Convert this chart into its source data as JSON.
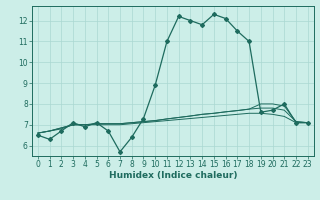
{
  "xlabel": "Humidex (Indice chaleur)",
  "bg_color": "#cceee8",
  "line_color": "#1e6b5e",
  "grid_color": "#aad8d2",
  "x_values": [
    0,
    1,
    2,
    3,
    4,
    5,
    6,
    7,
    8,
    9,
    10,
    11,
    12,
    13,
    14,
    15,
    16,
    17,
    18,
    19,
    20,
    21,
    22,
    23
  ],
  "main_y": [
    6.5,
    6.3,
    6.7,
    7.1,
    6.9,
    7.1,
    6.7,
    5.7,
    6.4,
    7.3,
    8.9,
    11.0,
    12.2,
    12.0,
    11.8,
    12.3,
    12.1,
    11.5,
    11.0,
    7.6,
    7.7,
    8.0,
    7.1,
    7.1
  ],
  "trend1_y": [
    6.6,
    6.7,
    6.8,
    7.0,
    7.0,
    7.0,
    7.0,
    7.0,
    7.05,
    7.1,
    7.15,
    7.2,
    7.25,
    7.3,
    7.35,
    7.4,
    7.45,
    7.5,
    7.55,
    7.55,
    7.5,
    7.4,
    7.1,
    7.1
  ],
  "trend2_y": [
    6.6,
    6.7,
    6.85,
    7.0,
    7.0,
    7.05,
    7.05,
    7.05,
    7.1,
    7.15,
    7.2,
    7.28,
    7.35,
    7.42,
    7.5,
    7.55,
    7.62,
    7.68,
    7.75,
    7.8,
    7.8,
    7.7,
    7.15,
    7.1
  ],
  "trend3_y": [
    6.6,
    6.7,
    6.85,
    7.0,
    7.0,
    7.05,
    7.05,
    7.05,
    7.1,
    7.15,
    7.2,
    7.28,
    7.35,
    7.42,
    7.5,
    7.55,
    7.62,
    7.68,
    7.75,
    8.0,
    8.0,
    7.9,
    7.15,
    7.1
  ],
  "ylim": [
    5.5,
    12.7
  ],
  "yticks": [
    6,
    7,
    8,
    9,
    10,
    11,
    12
  ]
}
